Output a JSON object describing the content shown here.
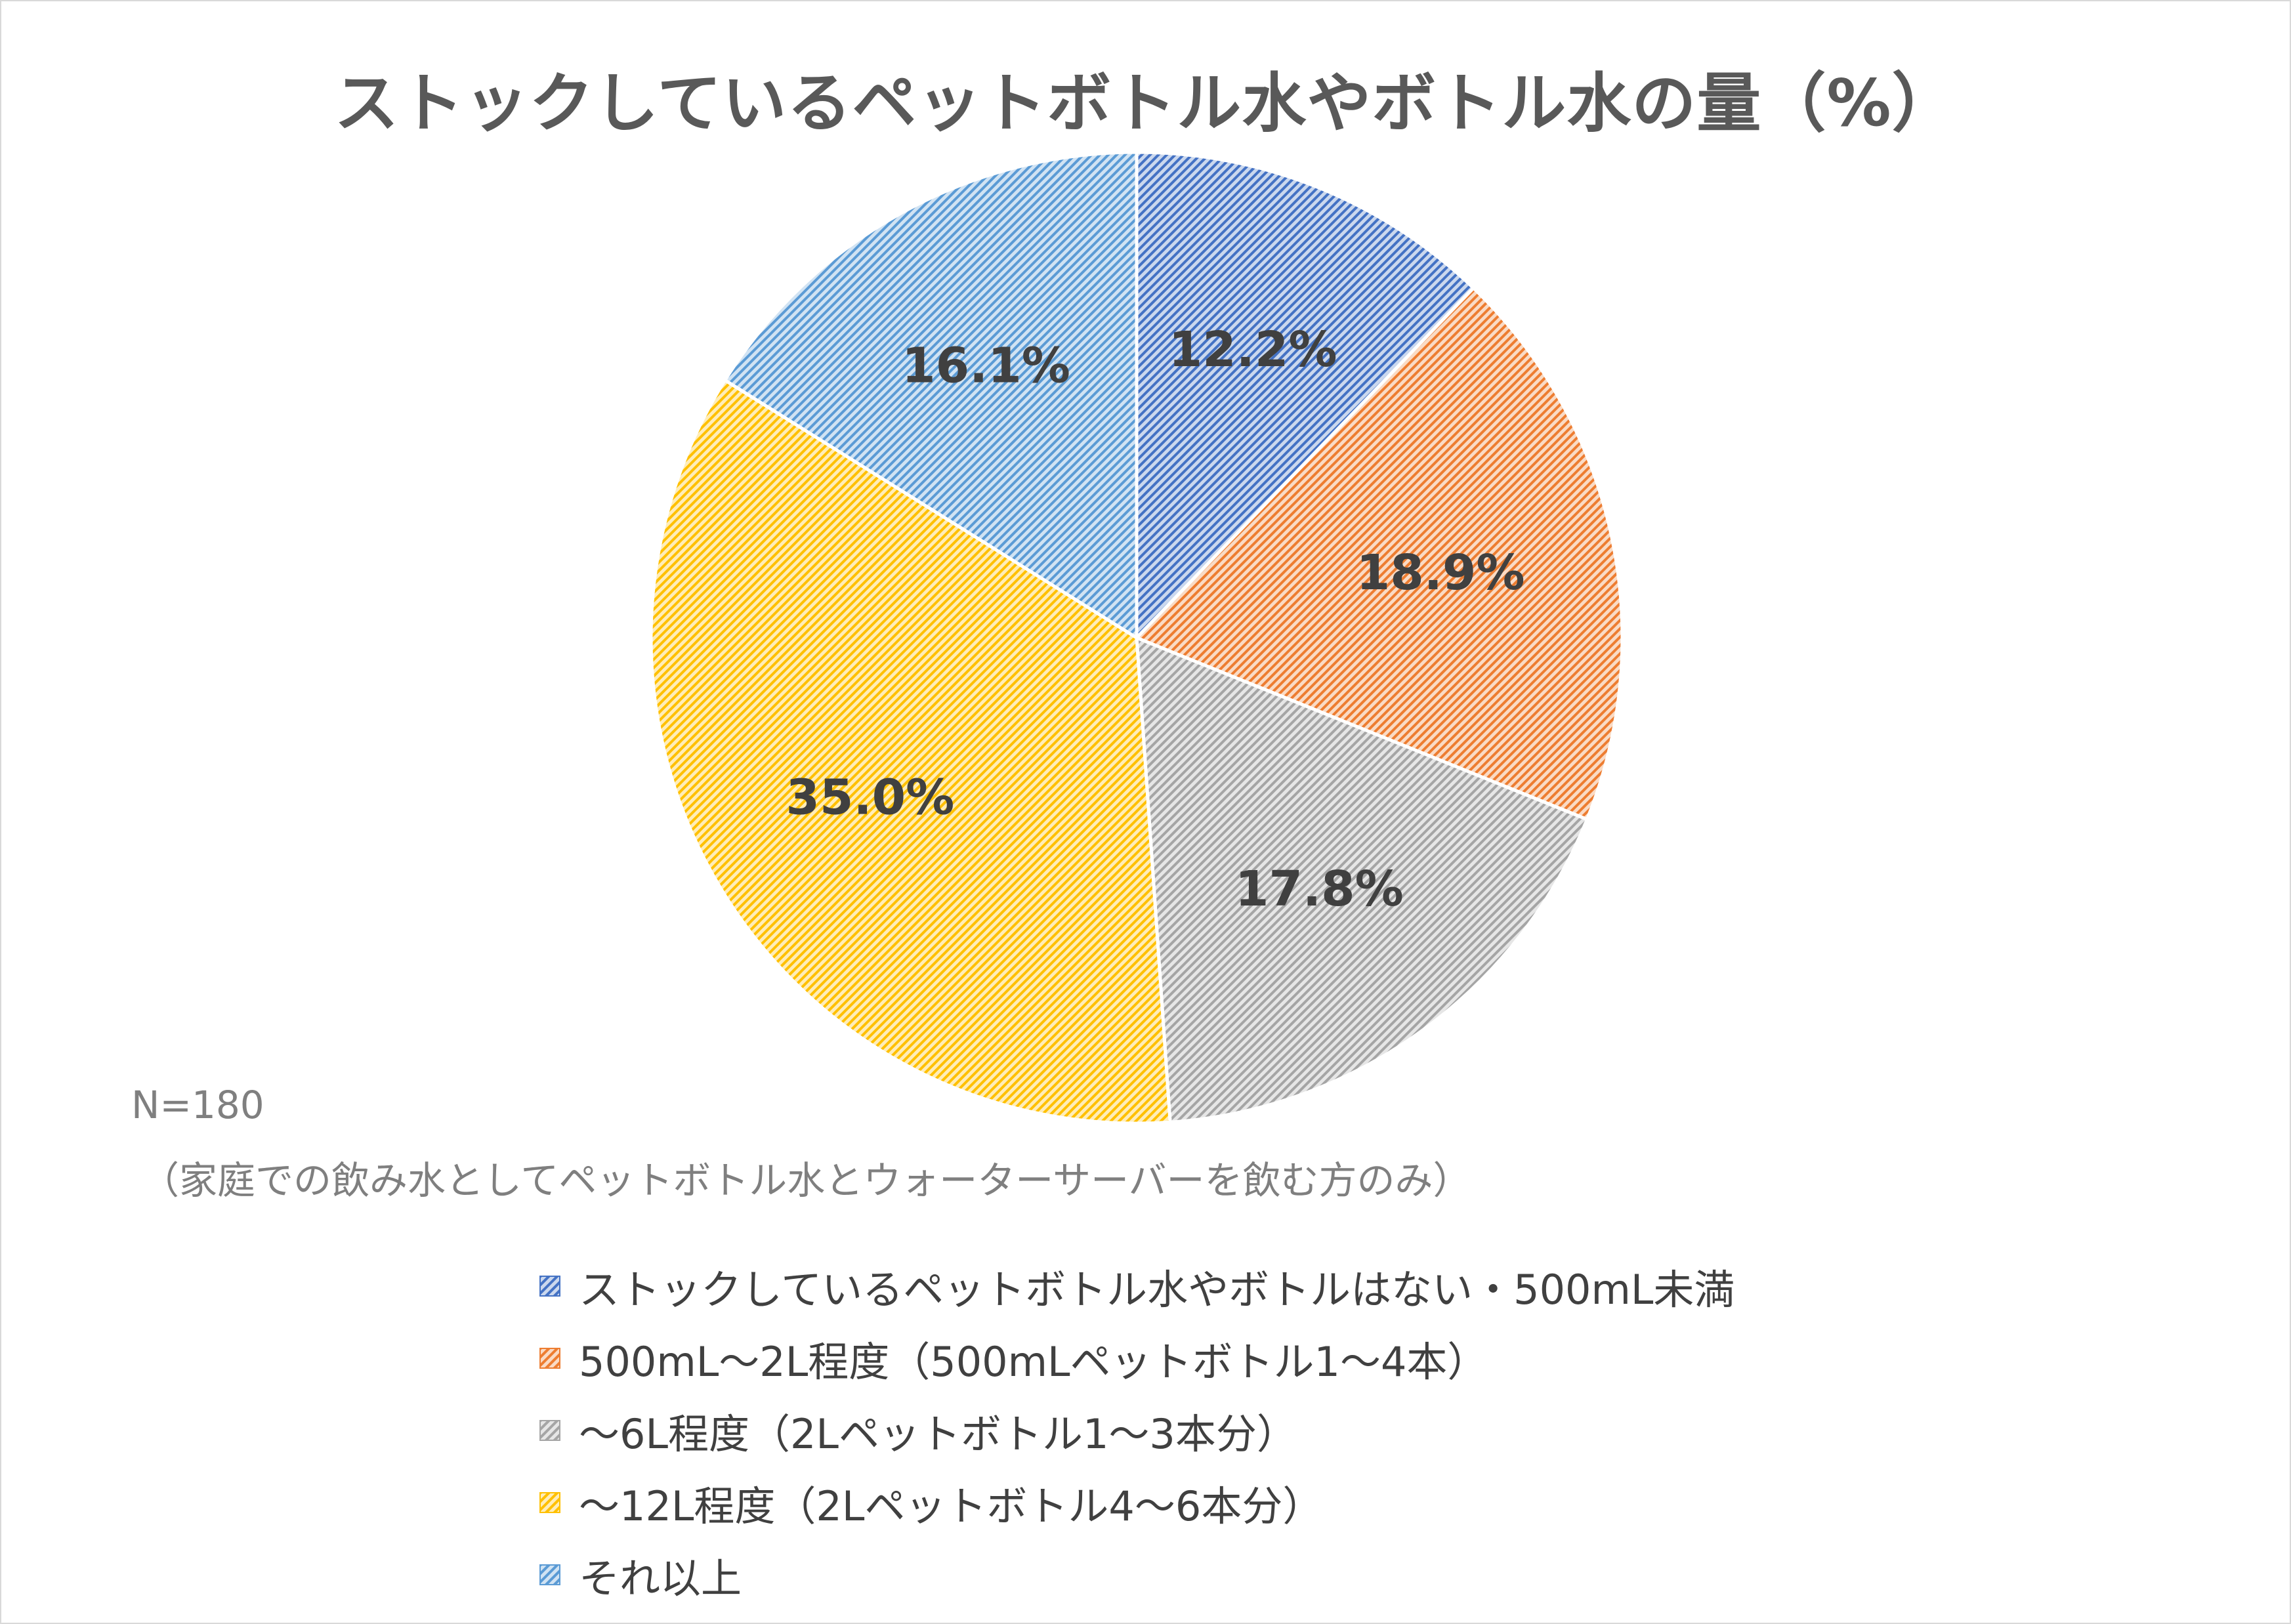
{
  "chart_data": {
    "type": "pie",
    "title": "ストックしているペットボトル水やボトル水の量（%）",
    "categories": [
      "ストックしているペットボトル水やボトルはない・500mL未満",
      "500mL～2L程度（500mLペットボトル1～4本）",
      "～6L程度（2Lペットボトル1～3本分）",
      "～12L程度（2Lペットボトル4～6本分）",
      "それ以上"
    ],
    "values": [
      12.2,
      18.9,
      17.8,
      35.0,
      16.1
    ],
    "value_labels": [
      "12.2%",
      "18.9%",
      "17.8%",
      "35.0%",
      "16.1%"
    ],
    "colors": [
      "#4472c4",
      "#ed7d31",
      "#a5a5a5",
      "#ffc000",
      "#5b9bd5"
    ],
    "fill_style": "diagonal hatch",
    "start_angle": "12 o'clock, clockwise",
    "legend_position": "bottom"
  },
  "notes": {
    "sample_size": "N=180",
    "condition": "（家庭での飲み水としてペットボトル水とウォーターサーバーを飲む方のみ）"
  }
}
